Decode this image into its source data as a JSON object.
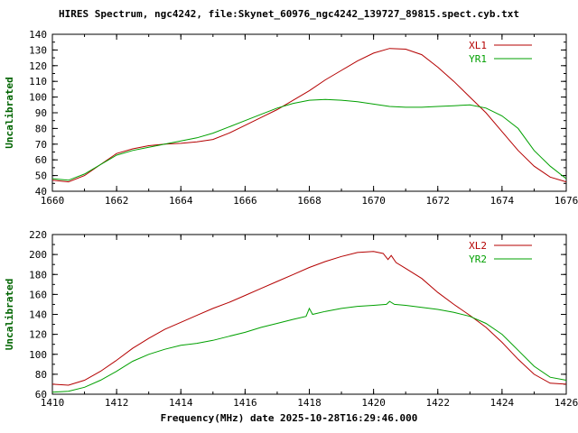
{
  "title": "HIRES Spectrum, ngc4242, file:Skynet_60976_ngc4242_139727_89815.spect.cyb.txt",
  "xlabel": "Frequency(MHz) date 2025-10-28T16:29:46.000",
  "colors": {
    "background": "#ffffff",
    "axis": "#000000",
    "tick_text": "#000000",
    "ylabel_text": "#006400",
    "xl_line": "#b40000",
    "yr_line": "#00a000"
  },
  "chart_data": [
    {
      "type": "line",
      "title": "",
      "ylabel": "Uncalibrated",
      "xlim": [
        1660,
        1676
      ],
      "ylim": [
        40,
        140
      ],
      "xtick_step": 2,
      "xtick_minor": 1,
      "ytick_step": 10,
      "ytick_minor": 5,
      "legend_position": "top-right",
      "grid": false,
      "series": [
        {
          "name": "XL1",
          "color": "#b40000",
          "x": [
            1660,
            1660.5,
            1661,
            1661.5,
            1662,
            1662.5,
            1663,
            1663.5,
            1664,
            1664.5,
            1665,
            1665.5,
            1666,
            1666.5,
            1667,
            1667.5,
            1668,
            1668.5,
            1669,
            1669.5,
            1670,
            1670.5,
            1671,
            1671.5,
            1672,
            1672.5,
            1673,
            1673.5,
            1674,
            1674.5,
            1675,
            1675.5,
            1676
          ],
          "y": [
            47,
            46,
            50,
            57,
            64,
            67,
            69,
            70,
            70.5,
            71.5,
            73,
            77,
            82,
            87,
            92,
            98,
            104,
            111,
            117,
            123,
            128,
            131,
            130.5,
            127,
            119,
            110,
            100,
            90,
            78,
            66,
            56,
            49,
            46
          ]
        },
        {
          "name": "YR1",
          "color": "#00a000",
          "x": [
            1660,
            1660.5,
            1661,
            1661.5,
            1662,
            1662.5,
            1663,
            1663.5,
            1664,
            1664.5,
            1665,
            1665.5,
            1666,
            1666.5,
            1667,
            1667.5,
            1668,
            1668.5,
            1669,
            1669.5,
            1670,
            1670.5,
            1671,
            1671.5,
            1672,
            1672.5,
            1673,
            1673.5,
            1674,
            1674.5,
            1675,
            1675.5,
            1676
          ],
          "y": [
            48,
            47,
            51,
            57,
            63,
            66,
            68,
            70,
            72,
            74,
            77,
            81,
            85,
            89,
            93,
            96,
            98,
            98.5,
            98,
            97,
            95.5,
            94,
            93.5,
            93.5,
            94,
            94.5,
            95,
            93,
            88,
            80,
            66,
            56,
            48
          ]
        }
      ]
    },
    {
      "type": "line",
      "title": "",
      "ylabel": "Uncalibrated",
      "xlim": [
        1410,
        1426
      ],
      "ylim": [
        60,
        220
      ],
      "xtick_step": 2,
      "xtick_minor": 1,
      "ytick_step": 20,
      "ytick_minor": 10,
      "legend_position": "top-right",
      "grid": false,
      "series": [
        {
          "name": "XL2",
          "color": "#b40000",
          "x": [
            1410,
            1410.5,
            1411,
            1411.5,
            1412,
            1412.5,
            1413,
            1413.5,
            1414,
            1414.5,
            1415,
            1415.5,
            1416,
            1416.5,
            1417,
            1417.5,
            1418,
            1418.5,
            1419,
            1419.5,
            1420,
            1420.3,
            1420.45,
            1420.55,
            1420.7,
            1421,
            1421.5,
            1422,
            1422.5,
            1423,
            1423.5,
            1424,
            1424.5,
            1425,
            1425.5,
            1426
          ],
          "y": [
            70,
            69,
            74,
            83,
            94,
            106,
            116,
            125,
            132,
            139,
            146,
            152,
            159,
            166,
            173,
            180,
            187,
            193,
            198,
            202,
            203,
            201,
            195,
            199,
            192,
            186,
            176,
            162,
            150,
            139,
            127,
            112,
            95,
            80,
            71,
            70
          ]
        },
        {
          "name": "YR2",
          "color": "#00a000",
          "x": [
            1410,
            1410.5,
            1411,
            1411.5,
            1412,
            1412.5,
            1413,
            1413.5,
            1414,
            1414.5,
            1415,
            1415.5,
            1416,
            1416.5,
            1417,
            1417.5,
            1417.9,
            1418,
            1418.1,
            1418.5,
            1419,
            1419.5,
            1420,
            1420.4,
            1420.5,
            1420.65,
            1421,
            1421.5,
            1422,
            1422.5,
            1423,
            1423.5,
            1424,
            1424.5,
            1425,
            1425.5,
            1426
          ],
          "y": [
            62,
            63,
            67,
            74,
            83,
            93,
            100,
            105,
            109,
            111,
            114,
            118,
            122,
            127,
            131,
            135,
            138,
            146,
            140,
            143,
            146,
            148,
            149,
            150,
            153,
            150,
            149,
            147,
            145,
            142,
            138,
            131,
            120,
            104,
            88,
            77,
            74
          ]
        }
      ]
    }
  ]
}
